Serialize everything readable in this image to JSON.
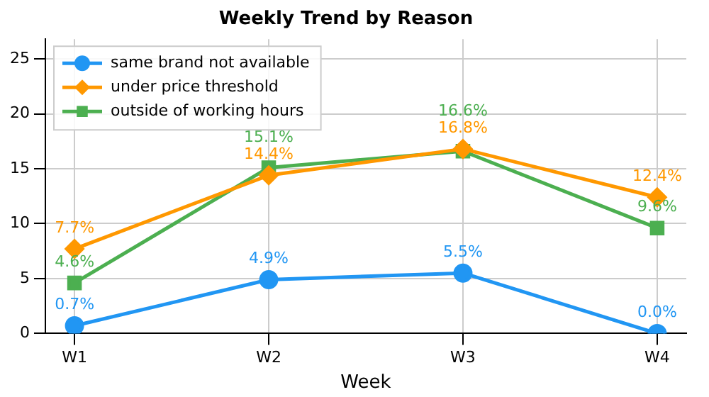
{
  "chart_data": {
    "type": "line",
    "title": "Weekly Trend by Reason",
    "xlabel": "Week",
    "categories": [
      "W1",
      "W2",
      "W3",
      "W4"
    ],
    "ylim": [
      0,
      26.8
    ],
    "yticks": [
      0,
      5,
      10,
      15,
      20,
      25
    ],
    "grid": true,
    "legend": "top left",
    "series": [
      {
        "name": "same brand not available",
        "color": "#2196f3",
        "marker": "circle",
        "values": [
          0.7,
          4.9,
          5.5,
          0.0
        ],
        "value_labels": [
          "0.7%",
          "4.9%",
          "5.5%",
          "0.0%"
        ]
      },
      {
        "name": "under price threshold",
        "color": "#ff9800",
        "marker": "diamond",
        "values": [
          7.7,
          14.4,
          16.8,
          12.4
        ],
        "value_labels": [
          "7.7%",
          "14.4%",
          "16.8%",
          "12.4%"
        ]
      },
      {
        "name": "outside of working hours",
        "color": "#4caf50",
        "marker": "square",
        "values": [
          4.6,
          15.1,
          16.6,
          9.6
        ],
        "value_labels": [
          "4.6%",
          "15.1%",
          "16.6%",
          "9.6%"
        ]
      }
    ]
  }
}
